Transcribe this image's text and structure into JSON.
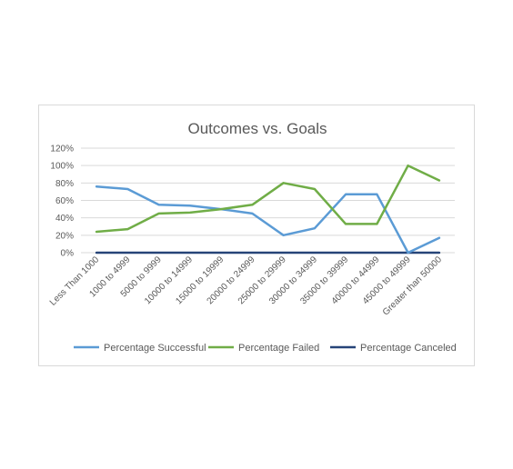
{
  "chart_data": {
    "type": "line",
    "title": "Outcomes vs. Goals",
    "xlabel": "",
    "ylabel": "",
    "categories": [
      "Less Than 1000",
      "1000 to 4999",
      "5000 to 9999",
      "10000 to 14999",
      "15000 to 19999",
      "20000 to 24999",
      "25000 to 29999",
      "30000 to 34999",
      "35000 to 39999",
      "40000 to 44999",
      "45000 to 49999",
      "Greater than 50000"
    ],
    "y_ticks": [
      "0%",
      "20%",
      "40%",
      "60%",
      "80%",
      "100%",
      "120%"
    ],
    "ylim": [
      0,
      1.2
    ],
    "grid": true,
    "legend_position": "bottom",
    "series": [
      {
        "name": "Percentage Successful",
        "color": "#5b9bd5",
        "values": [
          0.76,
          0.73,
          0.55,
          0.54,
          0.5,
          0.45,
          0.2,
          0.28,
          0.67,
          0.67,
          0.0,
          0.17
        ]
      },
      {
        "name": "Percentage Failed",
        "color": "#70ad47",
        "values": [
          0.24,
          0.27,
          0.45,
          0.46,
          0.5,
          0.55,
          0.8,
          0.73,
          0.33,
          0.33,
          1.0,
          0.83
        ]
      },
      {
        "name": "Percentage Canceled",
        "color": "#264478",
        "values": [
          0,
          0,
          0,
          0,
          0,
          0,
          0,
          0,
          0,
          0,
          0,
          0
        ]
      }
    ]
  }
}
